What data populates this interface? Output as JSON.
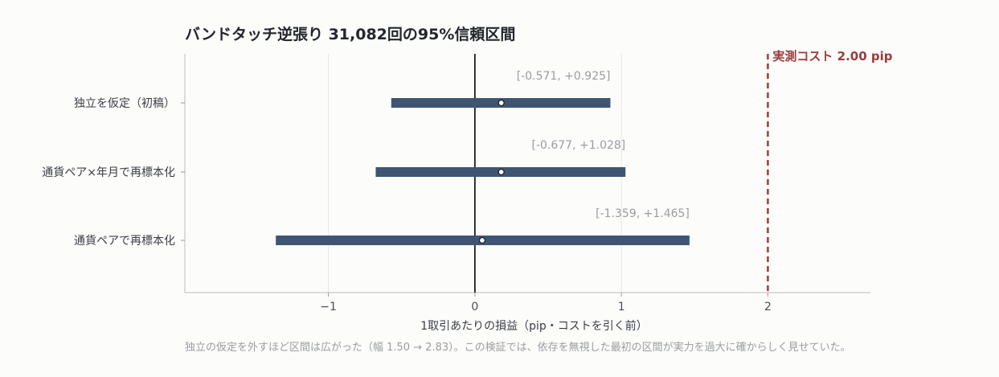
{
  "chart_data": {
    "type": "forest",
    "title": "バンドタッチ逆張り 31,082回の95%信頼区間",
    "xlabel": "1取引あたりの損益（pip・コストを引く前）",
    "caption": "独立の仮定を外すほど区間は広がった（幅 1.50 → 2.83）。この検証では、依存を無視した最初の区間が実力を過大に確からしく見せていた。",
    "xlim": [
      -1.98,
      2.7
    ],
    "xticks": [
      {
        "value": -1,
        "label": "−1"
      },
      {
        "value": 0,
        "label": "0"
      },
      {
        "value": 1,
        "label": "1"
      },
      {
        "value": 2,
        "label": "2"
      }
    ],
    "zero_line": 0,
    "reference": {
      "value": 2.0,
      "label": "実測コスト 2.00 pip",
      "color": "#9b3b3b"
    },
    "rows": [
      {
        "label": "独立を仮定（初稿）",
        "lower": -0.571,
        "upper": 0.925,
        "estimate": 0.18,
        "ci_text": "[-0.571, +0.925]"
      },
      {
        "label": "通貨ペア×年月で再標本化",
        "lower": -0.677,
        "upper": 1.028,
        "estimate": 0.18,
        "ci_text": "[-0.677, +1.028]"
      },
      {
        "label": "通貨ペアで再標本化",
        "lower": -1.359,
        "upper": 1.465,
        "estimate": 0.05,
        "ci_text": "[-1.359, +1.465]"
      }
    ],
    "bar_color": "#3f5573",
    "grid": "vertical"
  }
}
